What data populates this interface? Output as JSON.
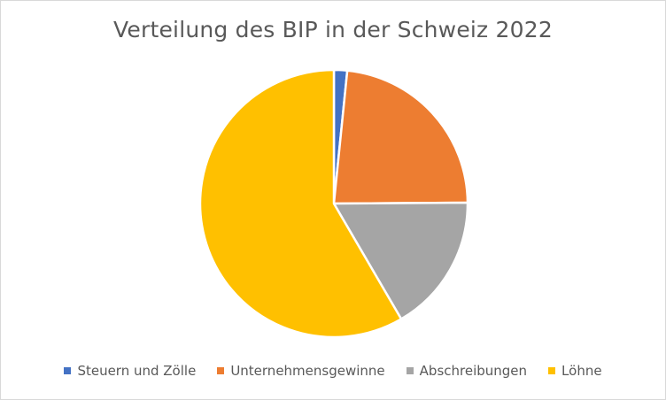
{
  "chart_data": {
    "type": "pie",
    "title": "Verteilung des BIP in der Schweiz 2022",
    "categories": [
      "Steuern und Zölle",
      "Unternehmensgewinne",
      "Abschreibungen",
      "Löhne"
    ],
    "values": [
      1.6,
      23.3,
      16.7,
      58.4
    ],
    "colors": [
      "#4472C4",
      "#ED7D31",
      "#A5A5A5",
      "#FFC000"
    ],
    "start_angle_deg": 0,
    "direction": "clockwise",
    "legend_position": "bottom"
  }
}
